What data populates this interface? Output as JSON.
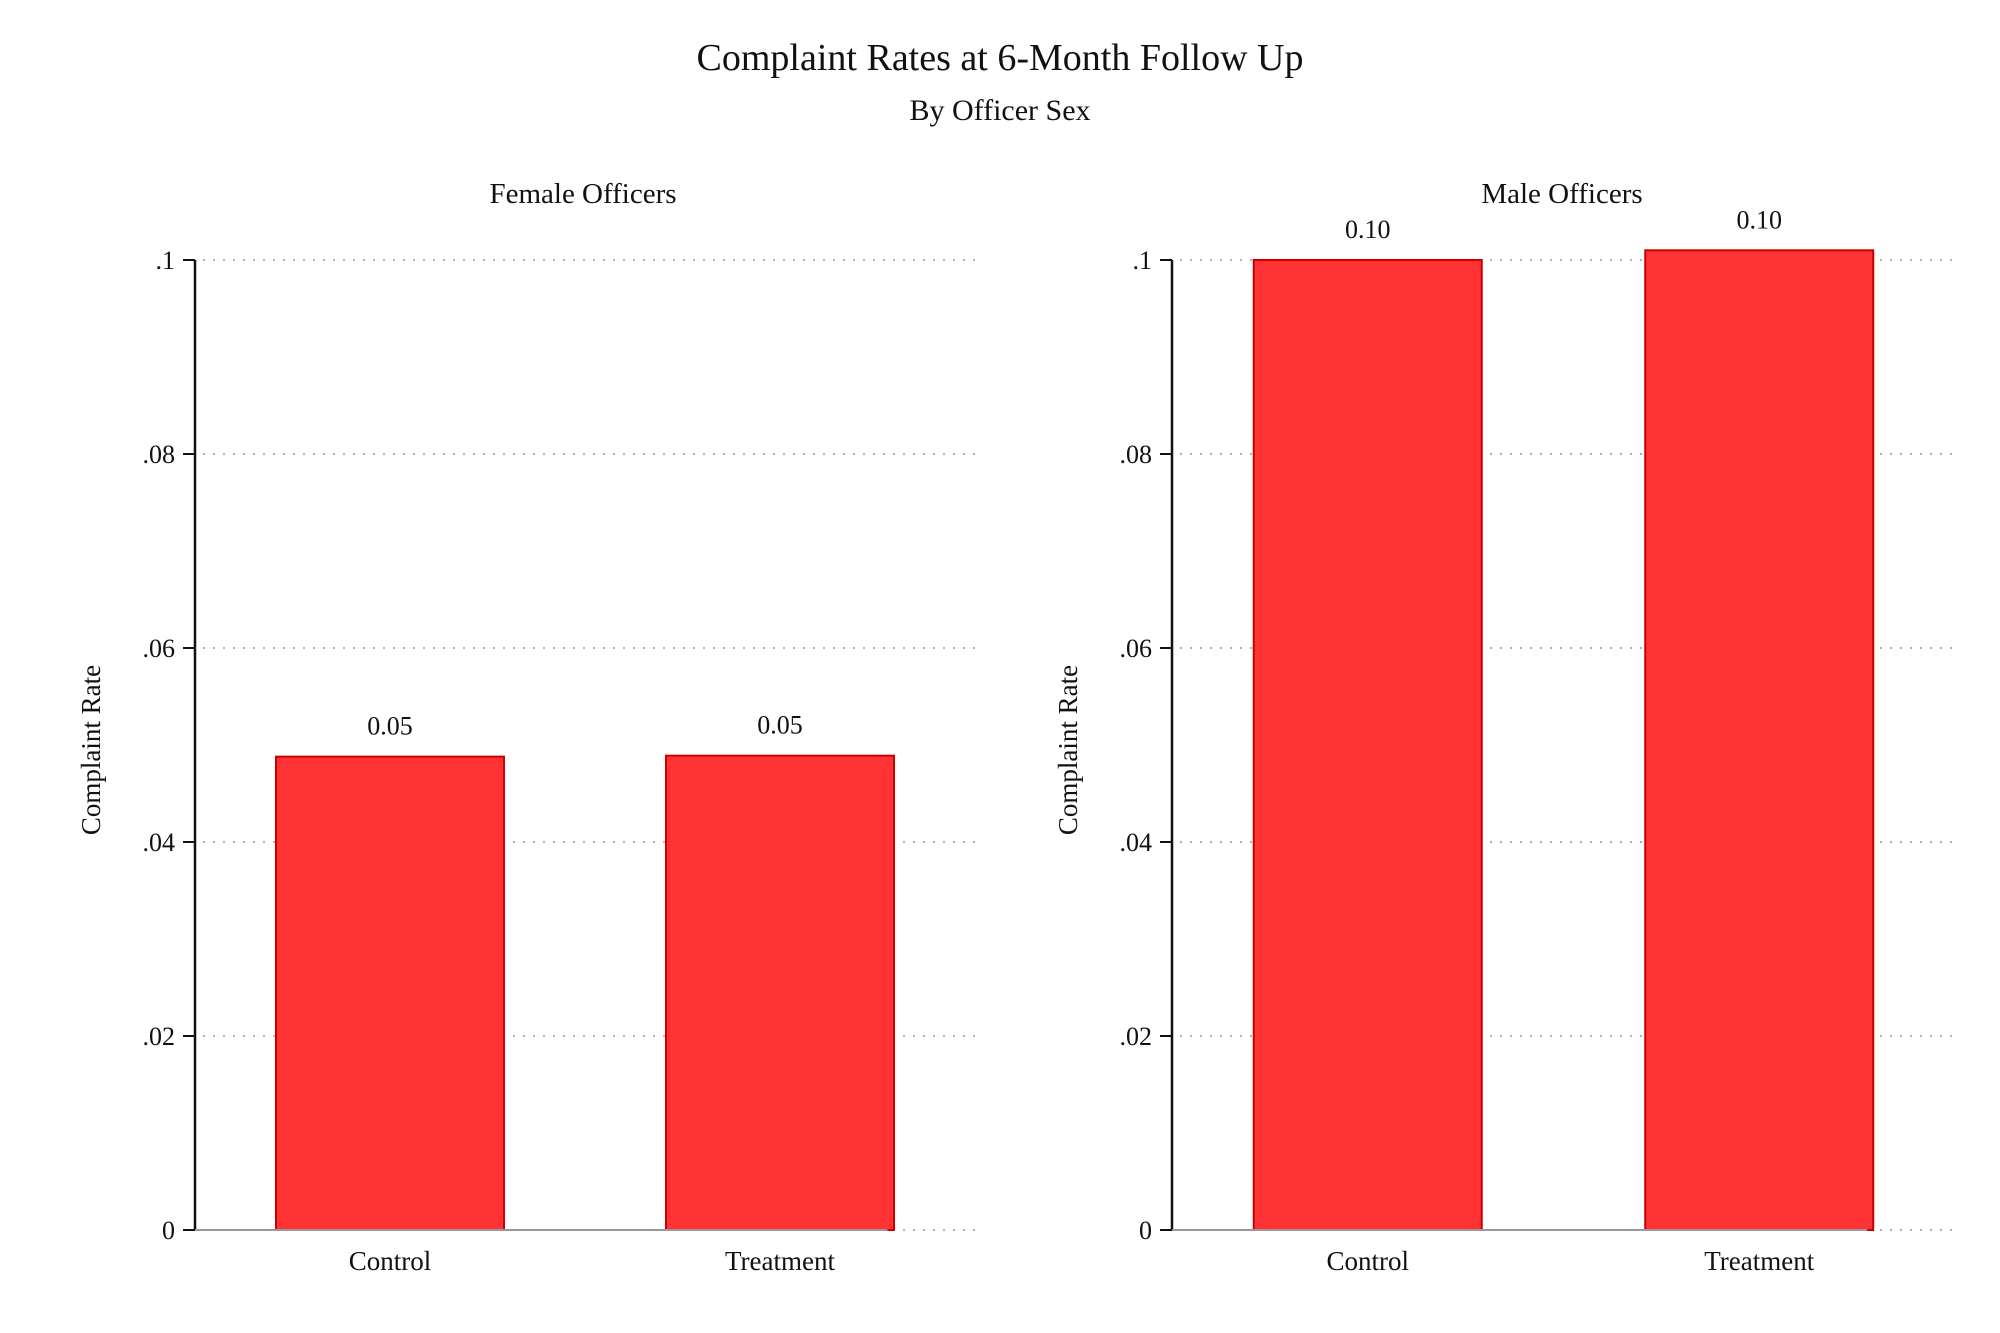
{
  "figure": {
    "title": "Complaint Rates at 6-Month Follow Up",
    "subtitle": "By Officer Sex"
  },
  "colors": {
    "bar_fill": "#ff3333",
    "bar_stroke": "#cc0000",
    "axis": "#111111",
    "grid": "#b3b3b3",
    "baseline": "#999999"
  },
  "chart_data": [
    {
      "type": "bar",
      "title": "Female Officers",
      "categories": [
        "Control",
        "Treatment"
      ],
      "values": [
        0.0488,
        0.0489
      ],
      "data_labels": [
        "0.05",
        "0.05"
      ],
      "ylabel": "Complaint Rate",
      "xlabel": "",
      "ylim": [
        0,
        0.1
      ],
      "yticks": [
        0,
        0.02,
        0.04,
        0.06,
        0.08,
        0.1
      ],
      "ytick_labels": [
        "0",
        ".02",
        ".04",
        ".06",
        ".08",
        ".1"
      ],
      "grid": true,
      "grid_style": "dotted",
      "legend": "none"
    },
    {
      "type": "bar",
      "title": "Male Officers",
      "categories": [
        "Control",
        "Treatment"
      ],
      "values": [
        0.1,
        0.101
      ],
      "data_labels": [
        "0.10",
        "0.10"
      ],
      "ylabel": "Complaint Rate",
      "xlabel": "",
      "ylim": [
        0,
        0.1
      ],
      "yticks": [
        0,
        0.02,
        0.04,
        0.06,
        0.08,
        0.1
      ],
      "ytick_labels": [
        "0",
        ".02",
        ".04",
        ".06",
        ".08",
        ".1"
      ],
      "grid": true,
      "grid_style": "dotted",
      "legend": "none"
    }
  ]
}
